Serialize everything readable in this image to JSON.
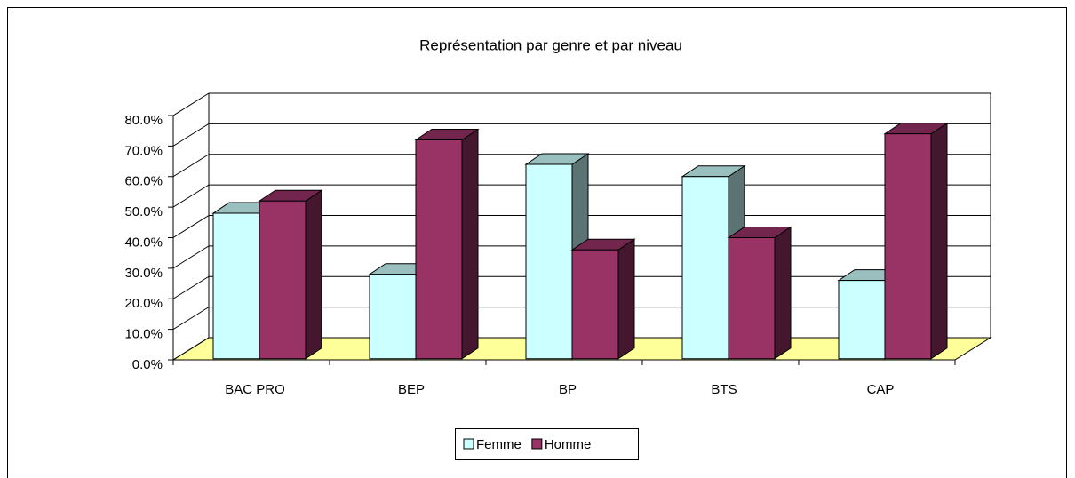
{
  "chart_data": {
    "type": "bar3d",
    "title": "Représentation par genre et par niveau",
    "categories": [
      "BAC PRO",
      "BEP",
      "BP",
      "BTS",
      "CAP"
    ],
    "series": [
      {
        "name": "Femme",
        "color": "#ccffff",
        "values": [
          48,
          28,
          64,
          60,
          26
        ]
      },
      {
        "name": "Homme",
        "color": "#993366",
        "values": [
          52,
          72,
          36,
          40,
          74
        ]
      }
    ],
    "ylim": [
      0,
      80
    ],
    "yticks": [
      {
        "value": 0,
        "label": "0.0%"
      },
      {
        "value": 10,
        "label": "10.0%"
      },
      {
        "value": 20,
        "label": "20.0%"
      },
      {
        "value": 30,
        "label": "30.0%"
      },
      {
        "value": 40,
        "label": "40.0%"
      },
      {
        "value": 50,
        "label": "50.0%"
      },
      {
        "value": 60,
        "label": "60.0%"
      },
      {
        "value": 70,
        "label": "70.0%"
      },
      {
        "value": 80,
        "label": "80.0%"
      }
    ],
    "grid": true,
    "legend": "bottom",
    "floor_color": "#ffff99"
  }
}
